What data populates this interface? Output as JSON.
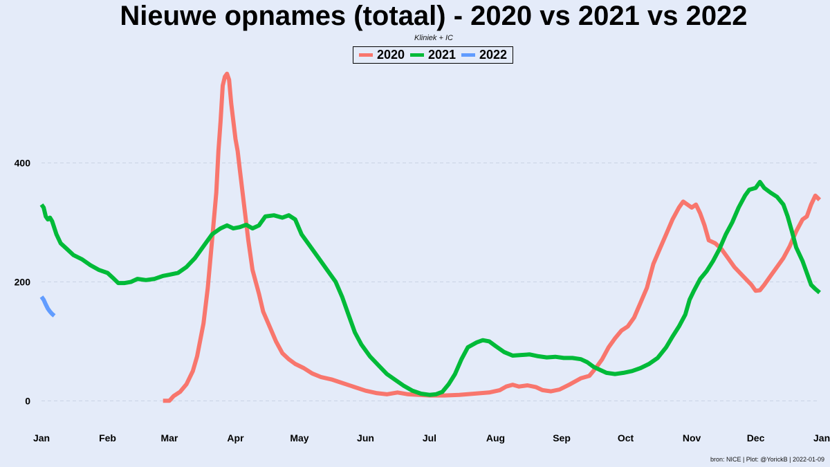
{
  "title": "Nieuwe opnames (totaal) - 2020 vs 2021 vs 2022",
  "subtitle": "Kliniek + IC",
  "caption": "bron: NICE  | Plot: @YorickB |  2022-01-09",
  "legend": [
    {
      "label": "2020",
      "color": "#f8766d"
    },
    {
      "label": "2021",
      "color": "#00ba38"
    },
    {
      "label": "2022",
      "color": "#619cff"
    }
  ],
  "chart_data": {
    "type": "line",
    "title": "Nieuwe opnames (totaal) - 2020 vs 2021 vs 2022",
    "subtitle": "Kliniek + IC",
    "xlabel": "",
    "ylabel": "",
    "x_unit": "day of year",
    "xlim": [
      1,
      366
    ],
    "ylim": [
      -45,
      560
    ],
    "y_ticks": [
      0,
      200,
      400
    ],
    "x_ticks": [
      {
        "label": "Jan",
        "day": 1
      },
      {
        "label": "Feb",
        "day": 32
      },
      {
        "label": "Mar",
        "day": 61
      },
      {
        "label": "Apr",
        "day": 92
      },
      {
        "label": "May",
        "day": 122
      },
      {
        "label": "Jun",
        "day": 153
      },
      {
        "label": "Jul",
        "day": 183
      },
      {
        "label": "Aug",
        "day": 214
      },
      {
        "label": "Sep",
        "day": 245
      },
      {
        "label": "Oct",
        "day": 275
      },
      {
        "label": "Nov",
        "day": 306
      },
      {
        "label": "Dec",
        "day": 336
      },
      {
        "label": "Jan",
        "day": 367
      }
    ],
    "grid": "horizontal dashed",
    "legend_position": "top",
    "series": [
      {
        "name": "2020",
        "color": "#f8766d",
        "points": [
          [
            58,
            0
          ],
          [
            61,
            0
          ],
          [
            63,
            8
          ],
          [
            66,
            15
          ],
          [
            69,
            28
          ],
          [
            72,
            50
          ],
          [
            74,
            75
          ],
          [
            77,
            130
          ],
          [
            79,
            190
          ],
          [
            81,
            270
          ],
          [
            83,
            350
          ],
          [
            84,
            420
          ],
          [
            85,
            470
          ],
          [
            86,
            530
          ],
          [
            87,
            545
          ],
          [
            88,
            550
          ],
          [
            89,
            540
          ],
          [
            90,
            500
          ],
          [
            91,
            470
          ],
          [
            92,
            440
          ],
          [
            93,
            420
          ],
          [
            94,
            390
          ],
          [
            96,
            330
          ],
          [
            98,
            270
          ],
          [
            100,
            220
          ],
          [
            103,
            180
          ],
          [
            105,
            150
          ],
          [
            108,
            125
          ],
          [
            111,
            100
          ],
          [
            114,
            80
          ],
          [
            117,
            70
          ],
          [
            120,
            62
          ],
          [
            124,
            55
          ],
          [
            128,
            46
          ],
          [
            132,
            40
          ],
          [
            137,
            36
          ],
          [
            142,
            30
          ],
          [
            148,
            23
          ],
          [
            153,
            17
          ],
          [
            158,
            13
          ],
          [
            163,
            11
          ],
          [
            168,
            14
          ],
          [
            173,
            11
          ],
          [
            178,
            10
          ],
          [
            183,
            9
          ],
          [
            190,
            9
          ],
          [
            197,
            10
          ],
          [
            204,
            12
          ],
          [
            211,
            14
          ],
          [
            216,
            18
          ],
          [
            219,
            24
          ],
          [
            222,
            27
          ],
          [
            225,
            24
          ],
          [
            229,
            26
          ],
          [
            233,
            23
          ],
          [
            236,
            18
          ],
          [
            240,
            16
          ],
          [
            244,
            19
          ],
          [
            249,
            28
          ],
          [
            254,
            38
          ],
          [
            258,
            42
          ],
          [
            261,
            55
          ],
          [
            264,
            70
          ],
          [
            267,
            90
          ],
          [
            270,
            105
          ],
          [
            273,
            118
          ],
          [
            276,
            125
          ],
          [
            279,
            140
          ],
          [
            282,
            165
          ],
          [
            285,
            190
          ],
          [
            288,
            230
          ],
          [
            291,
            255
          ],
          [
            294,
            280
          ],
          [
            297,
            305
          ],
          [
            300,
            325
          ],
          [
            302,
            335
          ],
          [
            304,
            330
          ],
          [
            306,
            325
          ],
          [
            308,
            330
          ],
          [
            310,
            315
          ],
          [
            312,
            295
          ],
          [
            314,
            270
          ],
          [
            317,
            265
          ],
          [
            320,
            255
          ],
          [
            323,
            240
          ],
          [
            326,
            225
          ],
          [
            330,
            210
          ],
          [
            334,
            195
          ],
          [
            336,
            185
          ],
          [
            338,
            186
          ],
          [
            340,
            195
          ],
          [
            343,
            210
          ],
          [
            346,
            225
          ],
          [
            349,
            240
          ],
          [
            352,
            260
          ],
          [
            355,
            285
          ],
          [
            358,
            305
          ],
          [
            360,
            310
          ],
          [
            362,
            330
          ],
          [
            364,
            345
          ],
          [
            366,
            338
          ]
        ]
      },
      {
        "name": "2021",
        "color": "#00ba38",
        "points": [
          [
            1,
            330
          ],
          [
            2,
            325
          ],
          [
            3,
            310
          ],
          [
            4,
            305
          ],
          [
            5,
            308
          ],
          [
            6,
            302
          ],
          [
            8,
            280
          ],
          [
            10,
            265
          ],
          [
            13,
            255
          ],
          [
            16,
            245
          ],
          [
            20,
            238
          ],
          [
            24,
            228
          ],
          [
            28,
            220
          ],
          [
            32,
            215
          ],
          [
            35,
            205
          ],
          [
            37,
            198
          ],
          [
            40,
            198
          ],
          [
            43,
            200
          ],
          [
            46,
            205
          ],
          [
            50,
            203
          ],
          [
            54,
            205
          ],
          [
            58,
            210
          ],
          [
            61,
            212
          ],
          [
            65,
            215
          ],
          [
            69,
            225
          ],
          [
            73,
            240
          ],
          [
            77,
            260
          ],
          [
            81,
            280
          ],
          [
            85,
            290
          ],
          [
            88,
            295
          ],
          [
            91,
            290
          ],
          [
            94,
            292
          ],
          [
            97,
            296
          ],
          [
            100,
            290
          ],
          [
            103,
            295
          ],
          [
            106,
            310
          ],
          [
            110,
            312
          ],
          [
            114,
            308
          ],
          [
            117,
            312
          ],
          [
            120,
            305
          ],
          [
            123,
            280
          ],
          [
            127,
            260
          ],
          [
            131,
            240
          ],
          [
            135,
            220
          ],
          [
            139,
            200
          ],
          [
            142,
            175
          ],
          [
            145,
            145
          ],
          [
            148,
            115
          ],
          [
            151,
            95
          ],
          [
            155,
            75
          ],
          [
            159,
            60
          ],
          [
            163,
            45
          ],
          [
            167,
            35
          ],
          [
            171,
            25
          ],
          [
            175,
            17
          ],
          [
            179,
            12
          ],
          [
            183,
            10
          ],
          [
            186,
            11
          ],
          [
            189,
            15
          ],
          [
            192,
            28
          ],
          [
            195,
            45
          ],
          [
            198,
            70
          ],
          [
            201,
            90
          ],
          [
            205,
            98
          ],
          [
            208,
            102
          ],
          [
            211,
            100
          ],
          [
            214,
            92
          ],
          [
            218,
            82
          ],
          [
            222,
            76
          ],
          [
            226,
            77
          ],
          [
            230,
            78
          ],
          [
            234,
            75
          ],
          [
            238,
            73
          ],
          [
            242,
            74
          ],
          [
            246,
            72
          ],
          [
            250,
            72
          ],
          [
            254,
            70
          ],
          [
            257,
            65
          ],
          [
            260,
            57
          ],
          [
            263,
            52
          ],
          [
            266,
            47
          ],
          [
            270,
            45
          ],
          [
            274,
            47
          ],
          [
            278,
            50
          ],
          [
            282,
            55
          ],
          [
            286,
            62
          ],
          [
            290,
            72
          ],
          [
            294,
            90
          ],
          [
            297,
            108
          ],
          [
            300,
            125
          ],
          [
            303,
            145
          ],
          [
            305,
            170
          ],
          [
            307,
            185
          ],
          [
            310,
            205
          ],
          [
            313,
            218
          ],
          [
            316,
            235
          ],
          [
            319,
            255
          ],
          [
            322,
            280
          ],
          [
            325,
            300
          ],
          [
            328,
            325
          ],
          [
            331,
            345
          ],
          [
            333,
            355
          ],
          [
            336,
            358
          ],
          [
            338,
            368
          ],
          [
            340,
            358
          ],
          [
            343,
            350
          ],
          [
            346,
            343
          ],
          [
            349,
            330
          ],
          [
            351,
            310
          ],
          [
            353,
            285
          ],
          [
            355,
            258
          ],
          [
            358,
            235
          ],
          [
            360,
            215
          ],
          [
            362,
            195
          ],
          [
            364,
            188
          ],
          [
            366,
            182
          ]
        ]
      },
      {
        "name": "2022",
        "color": "#619cff",
        "points": [
          [
            1,
            175
          ],
          [
            2,
            170
          ],
          [
            3,
            162
          ],
          [
            4,
            155
          ],
          [
            5,
            150
          ],
          [
            6,
            146
          ],
          [
            7,
            143
          ]
        ]
      }
    ]
  }
}
